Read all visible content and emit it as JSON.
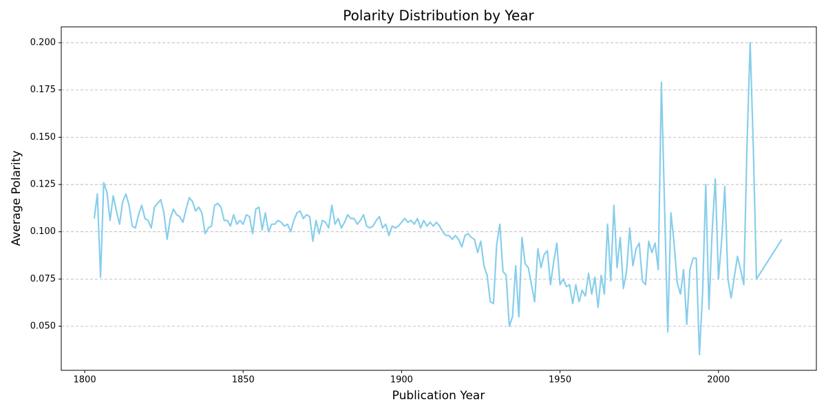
{
  "chart_data": {
    "type": "line",
    "title": "Polarity Distribution by Year",
    "x_label": "Publication Year",
    "y_label": "Average Polarity",
    "color": "#87ceeb",
    "grid": true,
    "xlim": [
      1792.6,
      2030.9
    ],
    "ylim": [
      0.0267,
      0.2084
    ],
    "xticks": [
      1800,
      1850,
      1900,
      1950,
      2000
    ],
    "yticks": [
      {
        "value": 0.05,
        "label": "0.050"
      },
      {
        "value": 0.075,
        "label": "0.075"
      },
      {
        "value": 0.1,
        "label": "0.100"
      },
      {
        "value": 0.125,
        "label": "0.125"
      },
      {
        "value": 0.15,
        "label": "0.150"
      },
      {
        "value": 0.175,
        "label": "0.175"
      },
      {
        "value": 0.2,
        "label": "0.200"
      }
    ],
    "x": [
      1803,
      1804,
      1805,
      1806,
      1807,
      1808,
      1809,
      1810,
      1811,
      1812,
      1813,
      1814,
      1815,
      1816,
      1817,
      1818,
      1819,
      1820,
      1821,
      1822,
      1823,
      1824,
      1825,
      1826,
      1827,
      1828,
      1829,
      1830,
      1831,
      1832,
      1833,
      1834,
      1835,
      1836,
      1837,
      1838,
      1839,
      1840,
      1841,
      1842,
      1843,
      1844,
      1845,
      1846,
      1847,
      1848,
      1849,
      1850,
      1851,
      1852,
      1853,
      1854,
      1855,
      1856,
      1857,
      1858,
      1859,
      1860,
      1861,
      1862,
      1863,
      1864,
      1865,
      1866,
      1867,
      1868,
      1869,
      1870,
      1871,
      1872,
      1873,
      1874,
      1875,
      1876,
      1877,
      1878,
      1879,
      1880,
      1881,
      1882,
      1883,
      1884,
      1885,
      1886,
      1887,
      1888,
      1889,
      1890,
      1891,
      1892,
      1893,
      1894,
      1895,
      1896,
      1897,
      1898,
      1899,
      1900,
      1901,
      1902,
      1903,
      1904,
      1905,
      1906,
      1907,
      1908,
      1909,
      1910,
      1911,
      1912,
      1913,
      1914,
      1915,
      1916,
      1917,
      1918,
      1919,
      1920,
      1921,
      1922,
      1923,
      1924,
      1925,
      1926,
      1927,
      1928,
      1929,
      1930,
      1931,
      1932,
      1933,
      1934,
      1935,
      1936,
      1937,
      1938,
      1939,
      1940,
      1941,
      1942,
      1943,
      1944,
      1945,
      1946,
      1947,
      1948,
      1949,
      1950,
      1951,
      1952,
      1953,
      1954,
      1955,
      1956,
      1957,
      1958,
      1959,
      1960,
      1961,
      1962,
      1963,
      1964,
      1965,
      1966,
      1967,
      1968,
      1969,
      1970,
      1971,
      1972,
      1973,
      1974,
      1975,
      1976,
      1977,
      1978,
      1979,
      1980,
      1981,
      1982,
      1984,
      1985,
      1986,
      1987,
      1988,
      1989,
      1990,
      1991,
      1992,
      1993,
      1994,
      1995,
      1996,
      1997,
      1998,
      1999,
      2000,
      2001,
      2002,
      2003,
      2004,
      2005,
      2006,
      2007,
      2008,
      2009,
      2010,
      2011,
      2012,
      2020
    ],
    "values": [
      0.107,
      0.12,
      0.076,
      0.126,
      0.121,
      0.106,
      0.119,
      0.111,
      0.104,
      0.116,
      0.12,
      0.114,
      0.103,
      0.102,
      0.109,
      0.114,
      0.107,
      0.106,
      0.102,
      0.113,
      0.115,
      0.117,
      0.11,
      0.096,
      0.107,
      0.112,
      0.109,
      0.108,
      0.105,
      0.112,
      0.118,
      0.116,
      0.111,
      0.113,
      0.11,
      0.099,
      0.102,
      0.103,
      0.114,
      0.115,
      0.113,
      0.106,
      0.106,
      0.103,
      0.109,
      0.104,
      0.106,
      0.104,
      0.109,
      0.108,
      0.099,
      0.112,
      0.113,
      0.101,
      0.11,
      0.1,
      0.104,
      0.104,
      0.106,
      0.105,
      0.103,
      0.104,
      0.1,
      0.106,
      0.11,
      0.111,
      0.107,
      0.109,
      0.108,
      0.095,
      0.106,
      0.099,
      0.106,
      0.105,
      0.102,
      0.114,
      0.104,
      0.107,
      0.102,
      0.105,
      0.109,
      0.107,
      0.107,
      0.104,
      0.106,
      0.109,
      0.103,
      0.102,
      0.103,
      0.106,
      0.108,
      0.102,
      0.104,
      0.098,
      0.103,
      0.102,
      0.103,
      0.105,
      0.107,
      0.105,
      0.106,
      0.104,
      0.107,
      0.102,
      0.106,
      0.103,
      0.105,
      0.103,
      0.105,
      0.103,
      0.1,
      0.098,
      0.098,
      0.096,
      0.098,
      0.096,
      0.092,
      0.098,
      0.099,
      0.097,
      0.096,
      0.089,
      0.095,
      0.082,
      0.077,
      0.063,
      0.062,
      0.093,
      0.104,
      0.079,
      0.077,
      0.05,
      0.055,
      0.082,
      0.055,
      0.097,
      0.083,
      0.081,
      0.072,
      0.063,
      0.091,
      0.081,
      0.088,
      0.09,
      0.072,
      0.084,
      0.094,
      0.072,
      0.075,
      0.071,
      0.072,
      0.062,
      0.072,
      0.063,
      0.069,
      0.066,
      0.078,
      0.067,
      0.076,
      0.06,
      0.077,
      0.067,
      0.104,
      0.074,
      0.114,
      0.081,
      0.097,
      0.07,
      0.079,
      0.102,
      0.082,
      0.091,
      0.094,
      0.074,
      0.072,
      0.095,
      0.089,
      0.094,
      0.08,
      0.179,
      0.047,
      0.11,
      0.094,
      0.073,
      0.067,
      0.08,
      0.051,
      0.08,
      0.086,
      0.086,
      0.035,
      0.068,
      0.125,
      0.059,
      0.1,
      0.128,
      0.075,
      0.095,
      0.124,
      0.075,
      0.065,
      0.076,
      0.087,
      0.08,
      0.072,
      0.145,
      0.2,
      0.145,
      0.075,
      0.096
    ]
  }
}
